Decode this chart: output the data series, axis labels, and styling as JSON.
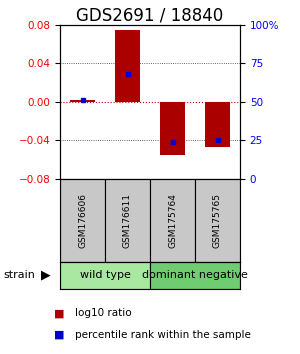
{
  "title": "GDS2691 / 18840",
  "samples": [
    "GSM176606",
    "GSM176611",
    "GSM175764",
    "GSM175765"
  ],
  "log10_ratio": [
    0.002,
    0.075,
    -0.055,
    -0.047
  ],
  "percentile_rank": [
    51,
    68,
    24,
    25
  ],
  "groups": [
    {
      "label": "wild type",
      "samples": [
        0,
        1
      ],
      "color": "#A8E8A0"
    },
    {
      "label": "dominant negative",
      "samples": [
        2,
        3
      ],
      "color": "#70CC70"
    }
  ],
  "strain_label": "strain",
  "ylim": [
    -0.08,
    0.08
  ],
  "yticks_left": [
    -0.08,
    -0.04,
    0,
    0.04,
    0.08
  ],
  "yticks_right": [
    0,
    25,
    50,
    75,
    100
  ],
  "right_tick_labels": [
    "0",
    "25",
    "50",
    "75",
    "100%"
  ],
  "bar_color": "#AA0000",
  "dot_color": "#0000CC",
  "zero_line_color": "#CC0000",
  "dot_line_color": "#444444",
  "bar_width": 0.55,
  "title_fontsize": 12,
  "tick_fontsize": 7.5,
  "sample_fontsize": 6.5,
  "group_fontsize": 8,
  "legend_fontsize": 7.5,
  "strain_fontsize": 8
}
